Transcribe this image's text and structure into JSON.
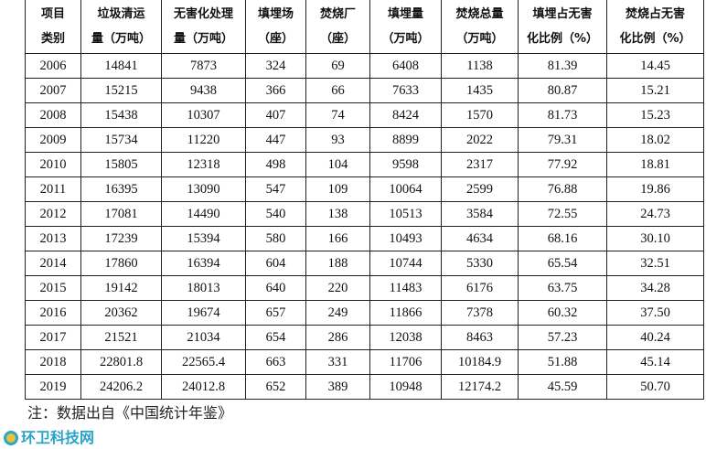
{
  "headers": [
    [
      "项目",
      "类别"
    ],
    [
      "垃圾清运",
      "量（万吨）"
    ],
    [
      "无害化处理",
      "量（万吨）"
    ],
    [
      "填埋场",
      "（座）"
    ],
    [
      "焚烧厂",
      "（座）"
    ],
    [
      "填埋量",
      "（万吨）"
    ],
    [
      "焚烧总量",
      "（万吨）"
    ],
    [
      "填埋占无害",
      "化比例（%）"
    ],
    [
      "焚烧占无害",
      "化比例（%）"
    ]
  ],
  "rows": [
    [
      "2006",
      "14841",
      "7873",
      "324",
      "69",
      "6408",
      "1138",
      "81.39",
      "14.45"
    ],
    [
      "2007",
      "15215",
      "9438",
      "366",
      "66",
      "7633",
      "1435",
      "80.87",
      "15.21"
    ],
    [
      "2008",
      "15438",
      "10307",
      "407",
      "74",
      "8424",
      "1570",
      "81.73",
      "15.23"
    ],
    [
      "2009",
      "15734",
      "11220",
      "447",
      "93",
      "8899",
      "2022",
      "79.31",
      "18.02"
    ],
    [
      "2010",
      "15805",
      "12318",
      "498",
      "104",
      "9598",
      "2317",
      "77.92",
      "18.81"
    ],
    [
      "2011",
      "16395",
      "13090",
      "547",
      "109",
      "10064",
      "2599",
      "76.88",
      "19.86"
    ],
    [
      "2012",
      "17081",
      "14490",
      "540",
      "138",
      "10513",
      "3584",
      "72.55",
      "24.73"
    ],
    [
      "2013",
      "17239",
      "15394",
      "580",
      "166",
      "10493",
      "4634",
      "68.16",
      "30.10"
    ],
    [
      "2014",
      "17860",
      "16394",
      "604",
      "188",
      "10744",
      "5330",
      "65.54",
      "32.51"
    ],
    [
      "2015",
      "19142",
      "18013",
      "640",
      "220",
      "11483",
      "6176",
      "63.75",
      "34.28"
    ],
    [
      "2016",
      "20362",
      "19674",
      "657",
      "249",
      "11866",
      "7378",
      "60.32",
      "37.50"
    ],
    [
      "2017",
      "21521",
      "21034",
      "654",
      "286",
      "12038",
      "8463",
      "57.23",
      "40.24"
    ],
    [
      "2018",
      "22801.8",
      "22565.4",
      "663",
      "331",
      "11706",
      "10184.9",
      "51.88",
      "45.14"
    ],
    [
      "2019",
      "24206.2",
      "24012.8",
      "652",
      "389",
      "10948",
      "12174.2",
      "45.59",
      "50.70"
    ]
  ],
  "note": "注：数据出自《中国统计年鉴》",
  "watermark": "环卫科技网"
}
